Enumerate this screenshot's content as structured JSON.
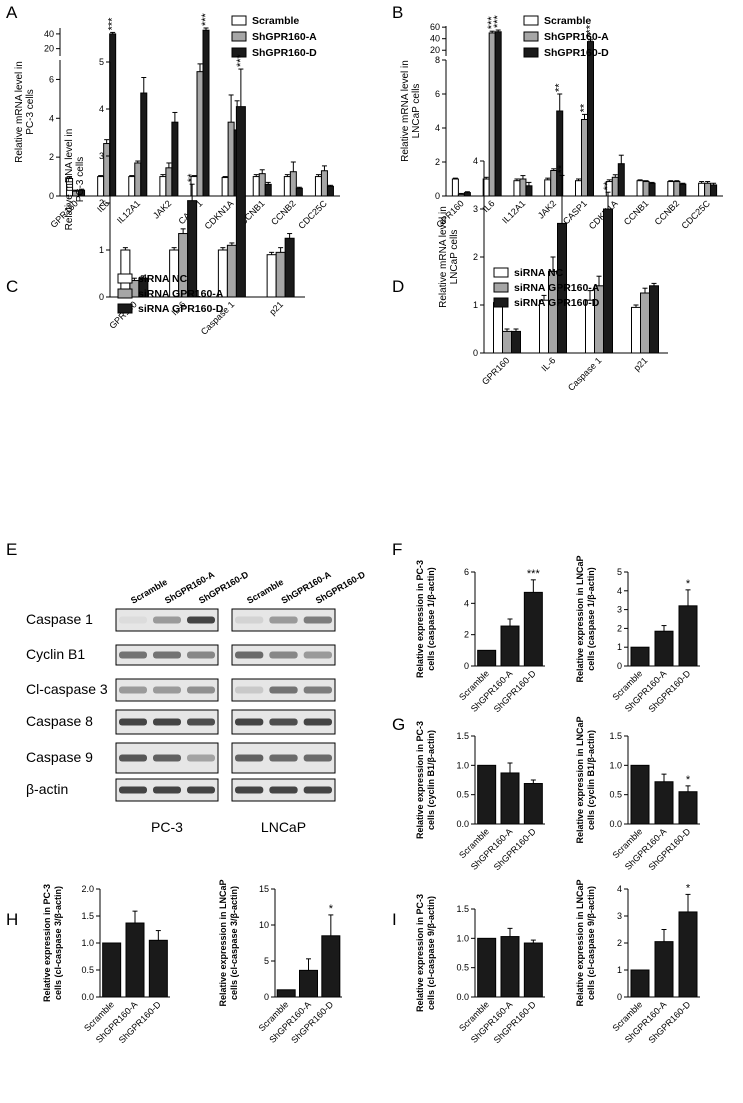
{
  "panels": {
    "A": "A",
    "B": "B",
    "C": "C",
    "D": "D",
    "E": "E",
    "F": "F",
    "G": "G",
    "H": "H",
    "I": "I"
  },
  "western_blot": {
    "lane_labels": [
      "Scramble",
      "ShGPR160-A",
      "ShGPR160-D"
    ],
    "rows": [
      "Caspase 1",
      "Cyclin B1",
      "Cl-caspase 3",
      "Caspase 8",
      "Caspase 9",
      "β-actin"
    ],
    "cell_lines": [
      "PC-3",
      "LNCaP"
    ]
  },
  "chart_data": [
    {
      "id": "A",
      "type": "bar",
      "categories": [
        "GPR160",
        "IL6",
        "IL12A1",
        "JAK2",
        "CASP1",
        "CDKN1A",
        "CCNB1",
        "CCNB2",
        "CDC25C"
      ],
      "ylabel_lines": [
        "Relative mRNA level in",
        "PC-3 cells"
      ],
      "yticks": [
        "0",
        "2",
        "4",
        "6",
        "20",
        "40"
      ],
      "ylim_lower": [
        0,
        7
      ],
      "ylim_upper": [
        10,
        48
      ],
      "legend": [
        "Scramble",
        "ShGPR160-A",
        "ShGPR160-D"
      ],
      "series": [
        {
          "name": "Scramble",
          "values": [
            0.9,
            1.0,
            1.0,
            1.0,
            1.0,
            0.95,
            1.0,
            1.0,
            1.0
          ],
          "errors": [
            0.1,
            0.05,
            0.05,
            0.1,
            0.05,
            0.05,
            0.1,
            0.1,
            0.1
          ]
        },
        {
          "name": "ShGPR160-A",
          "values": [
            0.25,
            2.7,
            1.7,
            1.45,
            6.4,
            3.8,
            1.15,
            1.25,
            1.3
          ],
          "errors": [
            0.05,
            0.2,
            0.1,
            0.25,
            0.4,
            1.4,
            0.2,
            0.5,
            0.25
          ]
        },
        {
          "name": "ShGPR160-D",
          "values": [
            0.3,
            40,
            5.3,
            3.8,
            45,
            3.4,
            0.6,
            0.4,
            0.5
          ],
          "errors": [
            0.05,
            2,
            0.8,
            0.5,
            3,
            1.5,
            0.1,
            0.05,
            0.05
          ]
        }
      ],
      "annotations": [
        {
          "cat": 1,
          "series": 2,
          "text": "***"
        },
        {
          "cat": 4,
          "series": 2,
          "text": "***"
        }
      ]
    },
    {
      "id": "B",
      "type": "bar",
      "categories": [
        "GPR160",
        "IL6",
        "IL12A1",
        "JAK2",
        "CASP1",
        "CDKN1A",
        "CCNB1",
        "CCNB2",
        "CDC25C"
      ],
      "ylabel_lines": [
        "Relative mRNA level in",
        "LNCaP cells"
      ],
      "yticks": [
        "0",
        "2",
        "4",
        "6",
        "8",
        "20",
        "40",
        "60"
      ],
      "ylim_lower": [
        0,
        8
      ],
      "ylim_upper": [
        10,
        62
      ],
      "legend": [
        "Scramble",
        "ShGPR160-A",
        "ShGPR160-D"
      ],
      "series": [
        {
          "name": "Scramble",
          "values": [
            1.0,
            1.0,
            0.9,
            0.95,
            0.9,
            0.85,
            0.9,
            0.85,
            0.75
          ],
          "errors": [
            0.05,
            0.1,
            0.1,
            0.1,
            0.1,
            0.1,
            0.05,
            0.05,
            0.1
          ]
        },
        {
          "name": "ShGPR160-A",
          "values": [
            0.1,
            50,
            1.0,
            1.5,
            4.5,
            1.1,
            0.85,
            0.85,
            0.75
          ],
          "errors": [
            0.05,
            3,
            0.2,
            0.1,
            0.3,
            0.15,
            0.05,
            0.05,
            0.1
          ]
        },
        {
          "name": "ShGPR160-D",
          "values": [
            0.2,
            52,
            0.6,
            5.0,
            35,
            1.9,
            0.75,
            0.7,
            0.65
          ],
          "errors": [
            0.05,
            3,
            0.2,
            1.0,
            3,
            0.5,
            0.05,
            0.05,
            0.1
          ]
        }
      ],
      "annotations": [
        {
          "cat": 1,
          "series": 1,
          "text": "***"
        },
        {
          "cat": 1,
          "series": 2,
          "text": "***"
        },
        {
          "cat": 3,
          "series": 2,
          "text": "**"
        },
        {
          "cat": 4,
          "series": 1,
          "text": "**"
        },
        {
          "cat": 4,
          "series": 2,
          "text": "***"
        }
      ]
    },
    {
      "id": "C",
      "type": "bar",
      "categories": [
        "GPR160",
        "IL-6",
        "Caspase 1",
        "p21"
      ],
      "ylabel_lines": [
        "Relative mRNA level in",
        "PC-3 cells"
      ],
      "yticks": [
        "0",
        "1",
        "2",
        "3",
        "4",
        "5"
      ],
      "ylim": [
        0,
        5
      ],
      "legend": [
        "siRNA NC",
        "siRNA GPR160-A",
        "siRNA GPR160-D"
      ],
      "series": [
        {
          "name": "siRNA NC",
          "values": [
            1.0,
            1.0,
            1.0,
            0.9
          ],
          "errors": [
            0.05,
            0.05,
            0.05,
            0.05
          ]
        },
        {
          "name": "siRNA GPR160-A",
          "values": [
            0.35,
            1.35,
            1.1,
            0.95
          ],
          "errors": [
            0.05,
            0.1,
            0.05,
            0.1
          ]
        },
        {
          "name": "siRNA GPR160-D",
          "values": [
            0.4,
            2.05,
            4.05,
            1.25
          ],
          "errors": [
            0.05,
            0.35,
            0.8,
            0.1
          ]
        }
      ],
      "annotations": [
        {
          "cat": 1,
          "series": 2,
          "text": "**"
        },
        {
          "cat": 2,
          "series": 2,
          "text": "***"
        }
      ]
    },
    {
      "id": "D",
      "type": "bar",
      "categories": [
        "GPR160",
        "IL-6",
        "Caspase 1",
        "p21"
      ],
      "ylabel_lines": [
        "Relative mRNA level in",
        "LNCaP cells"
      ],
      "yticks": [
        "0",
        "1",
        "2",
        "3",
        "4"
      ],
      "ylim": [
        0,
        4
      ],
      "legend": [
        "siRNA NC",
        "siRNA GPR160-A",
        "siRNA GPR160-D"
      ],
      "series": [
        {
          "name": "siRNA NC",
          "values": [
            1.05,
            1.1,
            1.1,
            0.95
          ],
          "errors": [
            0.05,
            0.1,
            0.2,
            0.05
          ]
        },
        {
          "name": "siRNA GPR160-A",
          "values": [
            0.45,
            1.7,
            1.4,
            1.25
          ],
          "errors": [
            0.05,
            0.3,
            0.2,
            0.1
          ]
        },
        {
          "name": "siRNA GPR160-D",
          "values": [
            0.45,
            2.7,
            3.0,
            1.4
          ],
          "errors": [
            0.05,
            1.0,
            0.35,
            0.05
          ]
        }
      ],
      "annotations": [
        {
          "cat": 1,
          "series": 2,
          "text": "**"
        },
        {
          "cat": 2,
          "series": 2,
          "text": "**"
        }
      ]
    },
    {
      "id": "F-left",
      "type": "bar",
      "categories": [
        "Scramble",
        "ShGPR160-A",
        "ShGPR160-D"
      ],
      "ylabel_lines": [
        "Relative expression in PC-3",
        "cells (caspase 1/β-actin)"
      ],
      "yticks": [
        "0",
        "2",
        "4",
        "6"
      ],
      "ylim": [
        0,
        6
      ],
      "values": [
        1.0,
        2.55,
        4.7
      ],
      "errors": [
        0,
        0.45,
        0.8
      ],
      "annotations": [
        {
          "cat": 2,
          "text": "***"
        }
      ]
    },
    {
      "id": "F-right",
      "type": "bar",
      "categories": [
        "Scramble",
        "ShGPR160-A",
        "ShGPR160-D"
      ],
      "ylabel_lines": [
        "Relative expression in LNCaP",
        "cells (caspase 1/β-actin)"
      ],
      "yticks": [
        "0",
        "1",
        "2",
        "3",
        "4",
        "5"
      ],
      "ylim": [
        0,
        5
      ],
      "values": [
        1.0,
        1.85,
        3.2
      ],
      "errors": [
        0,
        0.3,
        0.85
      ],
      "annotations": [
        {
          "cat": 2,
          "text": "*"
        }
      ]
    },
    {
      "id": "G-left",
      "type": "bar",
      "categories": [
        "Scramble",
        "ShGPR160-A",
        "ShGPR160-D"
      ],
      "ylabel_lines": [
        "Relative expression in PC-3",
        "cells (cyclin B1/β-actin)"
      ],
      "yticks": [
        "0.0",
        "0.5",
        "1.0",
        "1.5"
      ],
      "ylim": [
        0,
        1.5
      ],
      "values": [
        1.0,
        0.87,
        0.69
      ],
      "errors": [
        0,
        0.17,
        0.06
      ],
      "annotations": []
    },
    {
      "id": "G-right",
      "type": "bar",
      "categories": [
        "Scramble",
        "ShGPR160-A",
        "ShGPR160-D"
      ],
      "ylabel_lines": [
        "Relative expression in LNCaP",
        "cells (cyclin B1/β-actin)"
      ],
      "yticks": [
        "0.0",
        "0.5",
        "1.0",
        "1.5"
      ],
      "ylim": [
        0,
        1.5
      ],
      "values": [
        1.0,
        0.72,
        0.55
      ],
      "errors": [
        0,
        0.13,
        0.1
      ],
      "annotations": [
        {
          "cat": 2,
          "text": "*"
        }
      ]
    },
    {
      "id": "H-left",
      "type": "bar",
      "categories": [
        "Scramble",
        "ShGPR160-A",
        "ShGPR160-D"
      ],
      "ylabel_lines": [
        "Relative expression in PC-3",
        "cells (cl-caspase 3/β-actin)"
      ],
      "yticks": [
        "0.0",
        "0.5",
        "1.0",
        "1.5",
        "2.0"
      ],
      "ylim": [
        0,
        2.0
      ],
      "values": [
        1.0,
        1.37,
        1.05
      ],
      "errors": [
        0,
        0.22,
        0.18
      ],
      "annotations": []
    },
    {
      "id": "H-right",
      "type": "bar",
      "categories": [
        "Scramble",
        "ShGPR160-A",
        "ShGPR160-D"
      ],
      "ylabel_lines": [
        "Relative expression in LNCaP",
        "cells (cl-caspase 3/β-actin)"
      ],
      "yticks": [
        "0",
        "5",
        "10",
        "15"
      ],
      "ylim": [
        0,
        15
      ],
      "values": [
        1.0,
        3.7,
        8.5
      ],
      "errors": [
        0,
        1.6,
        2.9
      ],
      "annotations": [
        {
          "cat": 2,
          "text": "*"
        }
      ]
    },
    {
      "id": "I-left",
      "type": "bar",
      "categories": [
        "Scramble",
        "ShGPR160-A",
        "ShGPR160-D"
      ],
      "ylabel_lines": [
        "Relative expression in PC-3",
        "cells (cl-caspase 9/β-actin)"
      ],
      "yticks": [
        "0.0",
        "0.5",
        "1.0",
        "1.5"
      ],
      "ylim": [
        0,
        1.5
      ],
      "values": [
        1.0,
        1.03,
        0.92
      ],
      "errors": [
        0,
        0.14,
        0.05
      ],
      "annotations": []
    },
    {
      "id": "I-right",
      "type": "bar",
      "categories": [
        "Scramble",
        "ShGPR160-A",
        "ShGPR160-D"
      ],
      "ylabel_lines": [
        "Relative expression in LNCaP",
        "cells (cl-caspase 9/β-actin)"
      ],
      "yticks": [
        "0",
        "1",
        "2",
        "3",
        "4"
      ],
      "ylim": [
        0,
        4
      ],
      "values": [
        1.0,
        2.05,
        3.15
      ],
      "errors": [
        0,
        0.45,
        0.65
      ],
      "annotations": [
        {
          "cat": 2,
          "text": "*"
        }
      ]
    }
  ]
}
